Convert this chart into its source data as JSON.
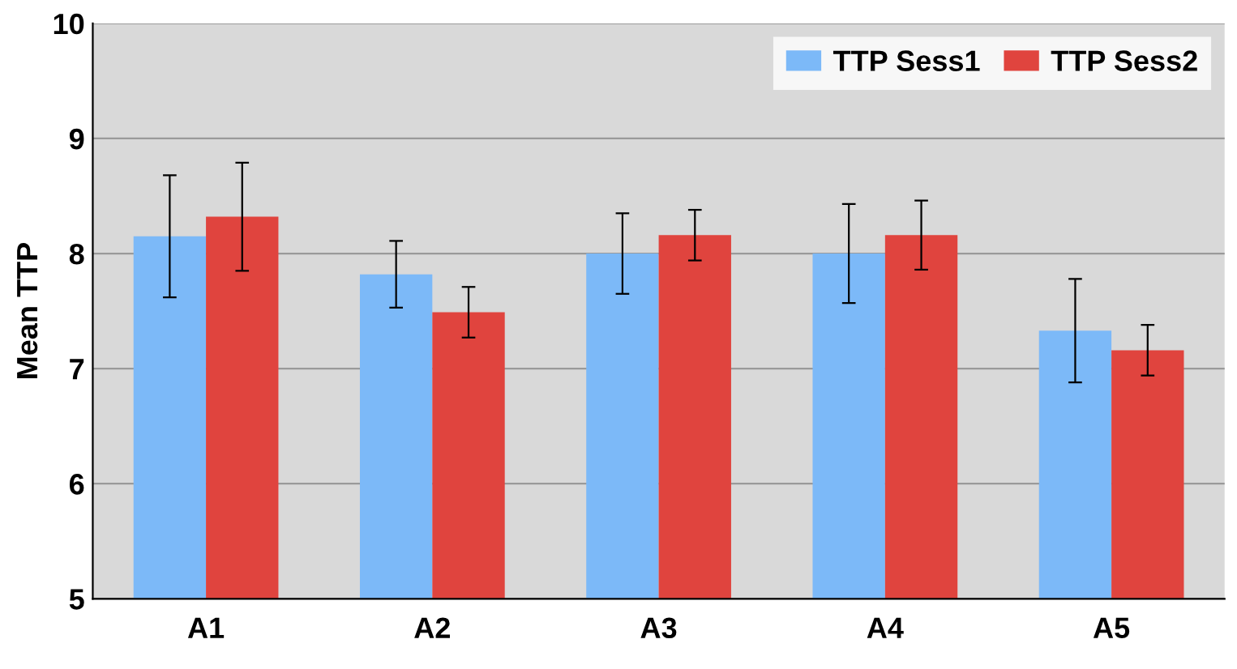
{
  "chart_data": {
    "type": "bar",
    "ylabel": "Mean TTP",
    "categories": [
      "A1",
      "A2",
      "A3",
      "A4",
      "A5"
    ],
    "series": [
      {
        "name": "TTP Sess1",
        "color": "#7cb9f8",
        "values": [
          8.15,
          7.82,
          8.0,
          8.0,
          7.33
        ],
        "errors": [
          0.53,
          0.29,
          0.35,
          0.43,
          0.45
        ]
      },
      {
        "name": "TTP Sess2",
        "color": "#e0443e",
        "values": [
          8.32,
          7.49,
          8.16,
          8.16,
          7.16
        ],
        "errors": [
          0.47,
          0.22,
          0.22,
          0.3,
          0.22
        ]
      }
    ],
    "ylim": [
      5,
      10
    ],
    "yticks": [
      5,
      6,
      7,
      8,
      9,
      10
    ],
    "grid": "y",
    "legend": "top right"
  }
}
